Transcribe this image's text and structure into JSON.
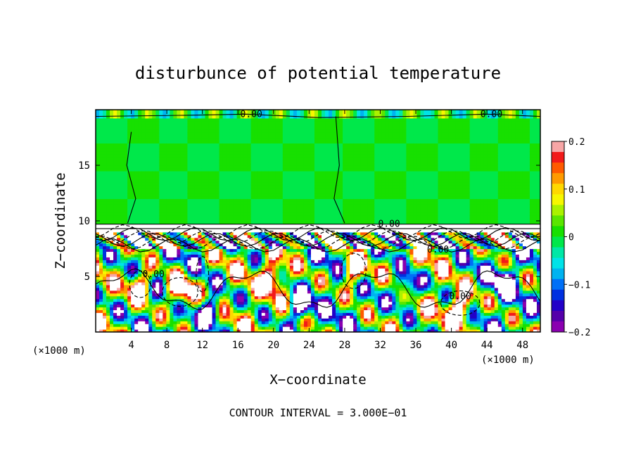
{
  "chart_data": {
    "type": "heatmap",
    "title": "disturbunce of potential temperature",
    "xlabel": "X−coordinate",
    "ylabel": "Z−coordinate",
    "x_unit": "(×1000 m)",
    "x_unit_right": "(×1000 m)",
    "footer": "CONTOUR INTERVAL = 3.000E−01",
    "xlim": [
      0,
      50
    ],
    "ylim": [
      0,
      20
    ],
    "x_ticks": [
      4,
      8,
      12,
      16,
      20,
      24,
      28,
      32,
      36,
      40,
      44,
      48
    ],
    "x_tick_labels": [
      "4",
      "8",
      "12",
      "16",
      "20",
      "24",
      "28",
      "32",
      "36",
      "40",
      "44",
      "48"
    ],
    "y_ticks": [
      5,
      10,
      15
    ],
    "y_tick_labels": [
      "5",
      "10",
      "15"
    ],
    "contour_labels": [
      {
        "text": "0.00",
        "x": 17.5,
        "y": 19.6
      },
      {
        "text": "0.00",
        "x": 44.5,
        "y": 19.6
      },
      {
        "text": "0.00",
        "x": 33.0,
        "y": 9.7
      },
      {
        "text": "0.00",
        "x": 6.5,
        "y": 5.2
      },
      {
        "text": "0.00",
        "x": 41.0,
        "y": 3.2
      },
      {
        "text": "0.00",
        "x": 38.5,
        "y": 7.4
      }
    ],
    "colorbar": {
      "min": -0.2,
      "max": 0.2,
      "tick_values": [
        0.2,
        0.1,
        0,
        -0.1,
        -0.2
      ],
      "tick_labels": [
        "0.2",
        "0.1",
        "0",
        "−0.1",
        "−0.2"
      ],
      "colors": [
        "#f7a6a6",
        "#f21a1a",
        "#ff5a00",
        "#ff9a00",
        "#ffd800",
        "#f7f700",
        "#aaf200",
        "#5ae600",
        "#17e000",
        "#00e84a",
        "#00e8a6",
        "#00e3e8",
        "#00b3f0",
        "#0070f7",
        "#0030e0",
        "#2200c8",
        "#5500aa",
        "#8a00b0"
      ]
    },
    "field": {
      "nx": 50,
      "nz": 20,
      "note": "",
      "value_range": [
        -0.2,
        0.2
      ]
    }
  }
}
